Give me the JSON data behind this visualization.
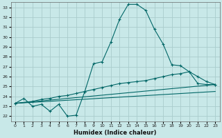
{
  "xlabel": "Humidex (Indice chaleur)",
  "bg_color": "#c8e8e8",
  "grid_color": "#aacccc",
  "line_color": "#006666",
  "xlim": [
    -0.5,
    23.5
  ],
  "ylim": [
    21.5,
    33.5
  ],
  "xticks": [
    0,
    1,
    2,
    3,
    4,
    5,
    6,
    7,
    8,
    9,
    10,
    11,
    12,
    13,
    14,
    15,
    16,
    17,
    18,
    19,
    20,
    21,
    22,
    23
  ],
  "yticks": [
    22,
    23,
    24,
    25,
    26,
    27,
    28,
    29,
    30,
    31,
    32,
    33
  ],
  "lines": [
    {
      "x": [
        0,
        1,
        2,
        3,
        4,
        5,
        6,
        7,
        8,
        9,
        10,
        11,
        12,
        13,
        14,
        15,
        16,
        17,
        18,
        19,
        20,
        21,
        22,
        23
      ],
      "y": [
        23.3,
        23.8,
        23.0,
        23.2,
        22.5,
        23.2,
        22.0,
        22.1,
        24.5,
        27.3,
        27.5,
        29.5,
        31.8,
        33.3,
        33.3,
        32.7,
        30.8,
        29.3,
        27.2,
        27.1,
        26.5,
        25.3,
        25.2,
        25.2
      ],
      "marker": true
    },
    {
      "x": [
        0,
        2,
        3,
        4,
        5,
        6,
        7,
        8,
        9,
        10,
        11,
        12,
        13,
        14,
        15,
        16,
        17,
        18,
        19,
        20,
        21,
        22,
        23
      ],
      "y": [
        23.3,
        23.5,
        23.7,
        23.8,
        24.0,
        24.1,
        24.3,
        24.5,
        24.7,
        24.9,
        25.1,
        25.3,
        25.4,
        25.5,
        25.6,
        25.8,
        26.0,
        26.2,
        26.3,
        26.5,
        26.0,
        25.5,
        25.2
      ],
      "marker": true
    },
    {
      "x": [
        0,
        23
      ],
      "y": [
        23.3,
        25.2
      ],
      "marker": false
    },
    {
      "x": [
        0,
        23
      ],
      "y": [
        23.3,
        24.5
      ],
      "marker": false
    }
  ]
}
